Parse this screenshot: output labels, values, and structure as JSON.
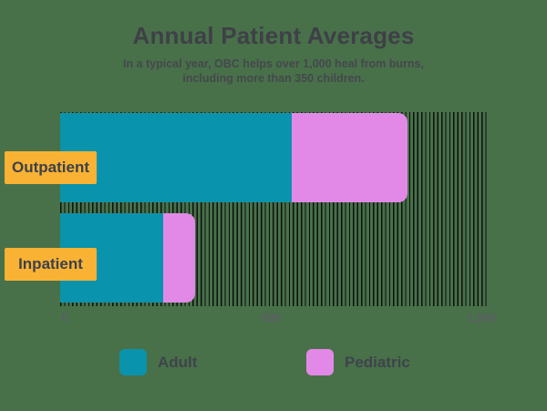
{
  "background_color": "#48714A",
  "header": {
    "title": "Annual Patient Averages",
    "subtitle_line1": "In a typical year, OBC helps over 1,000 heal from burns,",
    "subtitle_line2": "including more than 350 children."
  },
  "chart_data": {
    "type": "bar",
    "orientation": "horizontal",
    "stacked": true,
    "title": "Annual Patient Averages",
    "categories": [
      "Outpatient",
      "Inpatient"
    ],
    "series": [
      {
        "name": "Adult",
        "color": "#0A93AC",
        "values": [
          550,
          245
        ]
      },
      {
        "name": "Pediatric",
        "color": "#E289E8",
        "values": [
          275,
          75
        ]
      }
    ],
    "xlim": [
      0,
      1000
    ],
    "x_ticks": [
      {
        "value": 0,
        "label": "0"
      },
      {
        "value": 500,
        "label": "500"
      },
      {
        "value": 1000,
        "label": "1,000"
      }
    ],
    "legend": [
      "Adult",
      "Pediatric"
    ],
    "legend_position": "bottom",
    "grid": "hatched-vertical-stripes",
    "category_label_bg": "#F9B233",
    "hatch_color": "#0a0a0a"
  }
}
